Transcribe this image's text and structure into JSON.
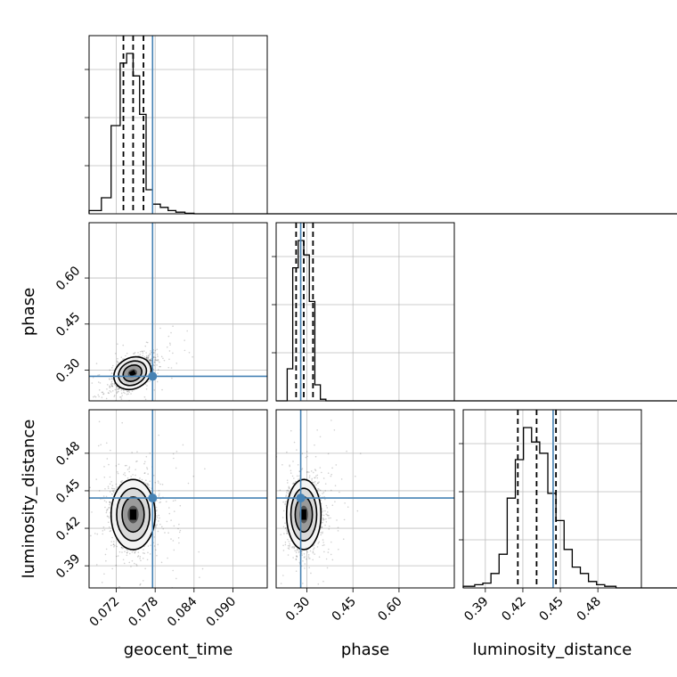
{
  "chart_data": {
    "type": "corner",
    "parameters": [
      "geocent_time",
      "phase",
      "luminosity_distance"
    ],
    "labels": {
      "geocent_time": "geocent_time",
      "phase": "phase",
      "luminosity_distance": "luminosity_distance"
    },
    "ranges": {
      "geocent_time": [
        0.0678,
        0.0953
      ],
      "phase": [
        0.2,
        0.78
      ],
      "luminosity_distance": [
        0.3723,
        0.5148
      ]
    },
    "ticks": {
      "geocent_time": [
        "0.072",
        "0.078",
        "0.084",
        "0.090"
      ],
      "phase": [
        "0.30",
        "0.45",
        "0.60"
      ],
      "luminosity_distance": [
        "0.39",
        "0.42",
        "0.45",
        "0.48"
      ]
    },
    "truths": {
      "geocent_time": 0.0776,
      "phase": 0.28,
      "luminosity_distance": 0.4442
    },
    "quantiles": {
      "geocent_time": [
        0.0731,
        0.0746,
        0.0762
      ],
      "phase": [
        0.265,
        0.29,
        0.32
      ],
      "luminosity_distance": [
        0.416,
        0.431,
        0.4465
      ]
    },
    "histograms": {
      "geocent_time": {
        "bins": [
          0.0678,
          0.0697,
          0.0712,
          0.0726,
          0.0736,
          0.0746,
          0.0756,
          0.0766,
          0.0776,
          0.0788,
          0.08,
          0.0812,
          0.0826,
          0.084,
          0.0858,
          0.0953
        ],
        "counts": [
          2,
          10,
          55,
          94,
          100,
          86,
          62,
          15,
          6,
          4,
          2,
          1,
          0.3,
          0,
          0
        ]
      },
      "phase": {
        "bins": [
          0.2,
          0.218,
          0.236,
          0.254,
          0.272,
          0.29,
          0.308,
          0.326,
          0.344,
          0.362,
          0.4,
          0.78
        ],
        "counts": [
          0,
          0,
          20,
          83,
          100,
          91,
          62,
          10,
          1,
          0,
          0
        ]
      },
      "luminosity_distance": {
        "bins": [
          0.3723,
          0.3815,
          0.388,
          0.3945,
          0.401,
          0.4075,
          0.414,
          0.4205,
          0.427,
          0.4335,
          0.44,
          0.4465,
          0.453,
          0.4595,
          0.466,
          0.4725,
          0.479,
          0.4855,
          0.4945,
          0.5148
        ],
        "counts": [
          1,
          2,
          3,
          9,
          21,
          56,
          80,
          100,
          91,
          84,
          59,
          42,
          24,
          13,
          9,
          4,
          2,
          1,
          0
        ]
      }
    },
    "scatter_density": {
      "geocent_time_vs_phase": {
        "center": [
          0.0745,
          0.29
        ],
        "sigma": [
          0.0015,
          0.025
        ],
        "correlation": 0.6
      },
      "geocent_time_vs_luminosity_distance": {
        "center": [
          0.0746,
          0.431
        ],
        "sigma": [
          0.0017,
          0.014
        ],
        "correlation": 0.0
      },
      "phase_vs_luminosity_distance": {
        "center": [
          0.29,
          0.431
        ],
        "sigma": [
          0.028,
          0.014
        ],
        "correlation": 0.0
      }
    },
    "grid": true
  }
}
